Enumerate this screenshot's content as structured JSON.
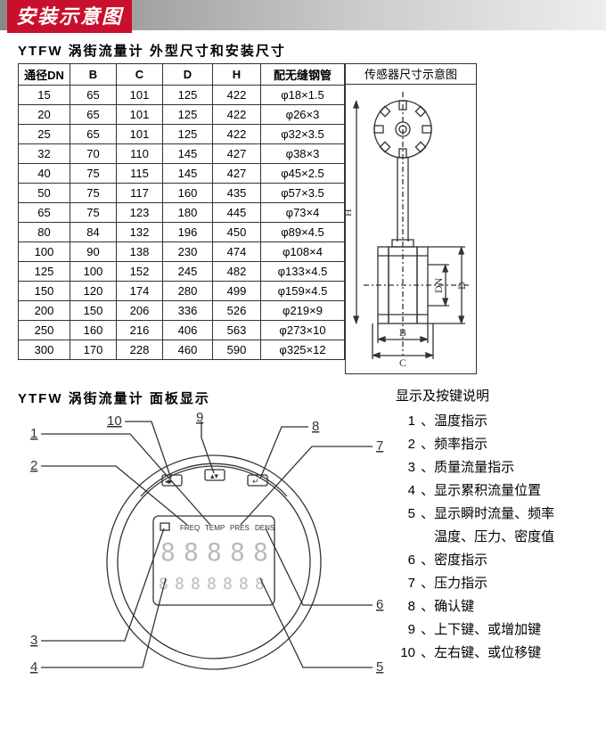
{
  "header": {
    "title": "安装示意图"
  },
  "table_section": {
    "title": "YTFW 涡街流量计 外型尺寸和安装尺寸",
    "columns": [
      "通径DN",
      "B",
      "C",
      "D",
      "H",
      "配无缝钢管"
    ],
    "diagram_header": "传感器尺寸示意图",
    "diagram_labels": {
      "H": "H",
      "D": "D",
      "DN": "DN",
      "B": "B",
      "C": "C"
    },
    "rows": [
      [
        "15",
        "65",
        "101",
        "125",
        "422",
        "φ18×1.5"
      ],
      [
        "20",
        "65",
        "101",
        "125",
        "422",
        "φ26×3"
      ],
      [
        "25",
        "65",
        "101",
        "125",
        "422",
        "φ32×3.5"
      ],
      [
        "32",
        "70",
        "110",
        "145",
        "427",
        "φ38×3"
      ],
      [
        "40",
        "75",
        "115",
        "145",
        "427",
        "φ45×2.5"
      ],
      [
        "50",
        "75",
        "117",
        "160",
        "435",
        "φ57×3.5"
      ],
      [
        "65",
        "75",
        "123",
        "180",
        "445",
        "φ73×4"
      ],
      [
        "80",
        "84",
        "132",
        "196",
        "450",
        "φ89×4.5"
      ],
      [
        "100",
        "90",
        "138",
        "230",
        "474",
        "φ108×4"
      ],
      [
        "125",
        "100",
        "152",
        "245",
        "482",
        "φ133×4.5"
      ],
      [
        "150",
        "120",
        "174",
        "280",
        "499",
        "φ159×4.5"
      ],
      [
        "200",
        "150",
        "206",
        "336",
        "526",
        "φ219×9"
      ],
      [
        "250",
        "160",
        "216",
        "406",
        "563",
        "φ273×10"
      ],
      [
        "300",
        "170",
        "228",
        "460",
        "590",
        "φ325×12"
      ]
    ]
  },
  "panel_section": {
    "title": "YTFW 涡街流量计 面板显示",
    "callouts": [
      "1",
      "2",
      "3",
      "4",
      "5",
      "6",
      "7",
      "8",
      "9",
      "10"
    ],
    "lcd_labels": [
      "FREQ",
      "TEMP",
      "PRES",
      "DENS"
    ],
    "legend_title": "显示及按键说明",
    "legend_items": [
      {
        "num": "1",
        "text": "温度指示"
      },
      {
        "num": "2",
        "text": "频率指示"
      },
      {
        "num": "3",
        "text": "质量流量指示"
      },
      {
        "num": "4",
        "text": "显示累积流量位置"
      },
      {
        "num": "5",
        "text": "显示瞬时流量、频率"
      },
      {
        "num": "",
        "text": "温度、压力、密度值"
      },
      {
        "num": "6",
        "text": "密度指示"
      },
      {
        "num": "7",
        "text": "压力指示"
      },
      {
        "num": "8",
        "text": "确认键"
      },
      {
        "num": "9",
        "text": "上下键、或增加键"
      },
      {
        "num": "10",
        "text": "左右键、或位移键"
      }
    ]
  },
  "style": {
    "accent_color": "#c8102e",
    "line_color": "#333333",
    "font_main": "SimSun"
  }
}
